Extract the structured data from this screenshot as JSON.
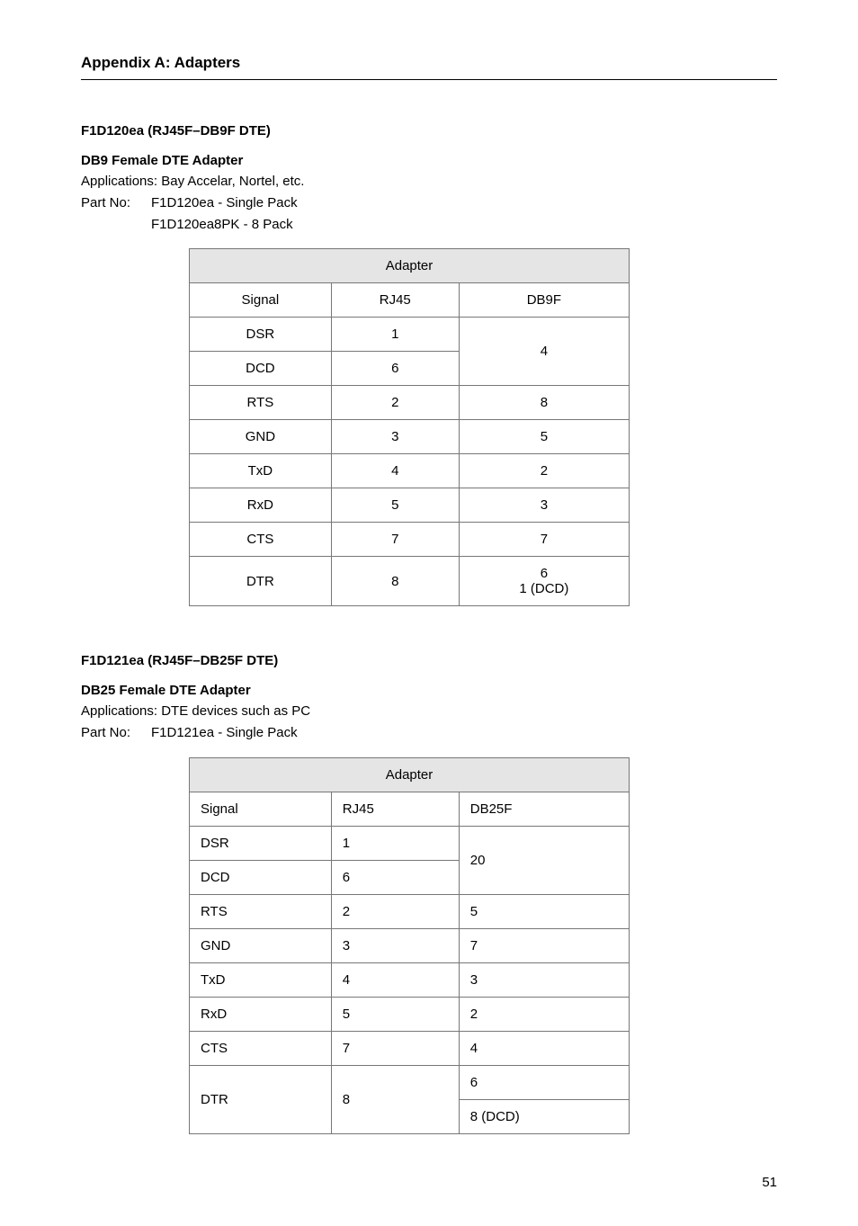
{
  "page": {
    "header": "Appendix A: Adapters",
    "number": "51"
  },
  "section1": {
    "code": "F1D120ea  (RJ45F–DB9F DTE)",
    "title": "DB9 Female DTE Adapter",
    "appLine": "Applications: Bay Accelar, Nortel, etc.",
    "partLabel": "Part No:",
    "part1": "F1D120ea - Single Pack",
    "part2": "F1D120ea8PK - 8 Pack",
    "table": {
      "caption": "Adapter",
      "colSignal": "Signal",
      "colRJ45": "RJ45",
      "colTarget": "DB9F",
      "rows": {
        "dsr": {
          "sig": "DSR",
          "rj": "1"
        },
        "dcd": {
          "sig": "DCD",
          "rj": "6"
        },
        "merge_dsr_dcd": "4",
        "rts": {
          "sig": "RTS",
          "rj": "2",
          "t": "8"
        },
        "gnd": {
          "sig": "GND",
          "rj": "3",
          "t": "5"
        },
        "txd": {
          "sig": "TxD",
          "rj": "4",
          "t": "2"
        },
        "rxd": {
          "sig": "RxD",
          "rj": "5",
          "t": "3"
        },
        "cts": {
          "sig": "CTS",
          "rj": "7",
          "t": "7"
        },
        "dtr": {
          "sig": "DTR",
          "rj": "8",
          "t": "6\n1 (DCD)"
        }
      }
    }
  },
  "section2": {
    "code": "F1D121ea  (RJ45F–DB25F DTE)",
    "title": "DB25 Female DTE Adapter",
    "appLine": "Applications: DTE devices such as PC",
    "partLabel": "Part No:",
    "part1": "F1D121ea - Single Pack",
    "table": {
      "caption": "Adapter",
      "colSignal": "Signal",
      "colRJ45": "RJ45",
      "colTarget": "DB25F",
      "rows": {
        "dsr": {
          "sig": "DSR",
          "rj": "1"
        },
        "dcd": {
          "sig": "DCD",
          "rj": "6"
        },
        "merge_dsr_dcd": "20",
        "rts": {
          "sig": "RTS",
          "rj": "2",
          "t": "5"
        },
        "gnd": {
          "sig": "GND",
          "rj": "3",
          "t": "7"
        },
        "txd": {
          "sig": "TxD",
          "rj": "4",
          "t": "3"
        },
        "rxd": {
          "sig": "RxD",
          "rj": "5",
          "t": "2"
        },
        "cts": {
          "sig": "CTS",
          "rj": "7",
          "t": "4"
        },
        "dtr": {
          "sig": "DTR",
          "rj": "8"
        },
        "dtr_t1": "6",
        "dtr_t2": "8 (DCD)"
      }
    }
  }
}
